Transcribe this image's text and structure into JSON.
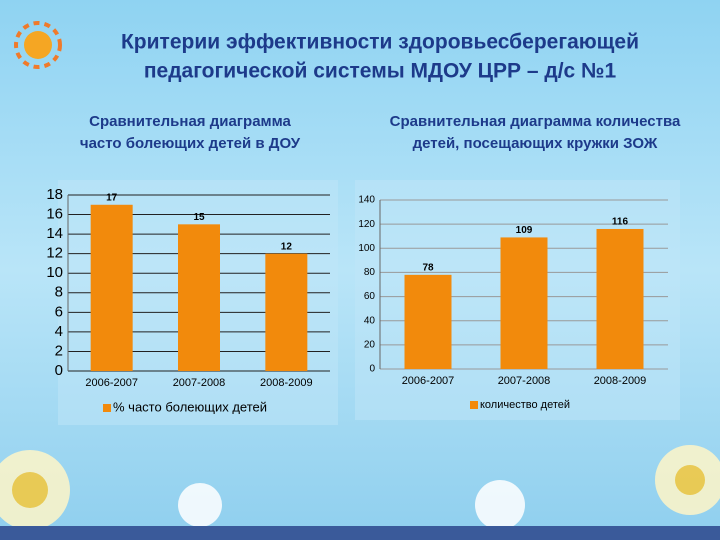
{
  "title": [
    "Критерии эффективности  здоровьесберегающей",
    "педагогической системы МДОУ ЦРР – д/с №1"
  ],
  "chart_data": [
    {
      "type": "bar",
      "title": [
        "Сравнительная диаграмма",
        "часто болеющих детей в ДОУ"
      ],
      "categories": [
        "2006-2007",
        "2007-2008",
        "2008-2009"
      ],
      "series": [
        {
          "name": "% часто болеющих детей",
          "color": "#f28a0c",
          "values": [
            17,
            15,
            12
          ]
        }
      ],
      "ylim": [
        0,
        18
      ],
      "yticks": [
        0,
        2,
        4,
        6,
        8,
        10,
        12,
        14,
        16,
        18
      ],
      "grid": true,
      "legend": "bottom"
    },
    {
      "type": "bar",
      "title": [
        "Сравнительная диаграмма количества",
        "детей, посещающих кружки ЗОЖ"
      ],
      "categories": [
        "2006-2007",
        "2007-2008",
        "2008-2009"
      ],
      "series": [
        {
          "name": "количество детей",
          "color": "#f28a0c",
          "values": [
            78,
            109,
            116
          ]
        }
      ],
      "ylim": [
        0,
        140
      ],
      "yticks": [
        0,
        20,
        40,
        60,
        80,
        100,
        120,
        140
      ],
      "grid": true,
      "legend": "bottom"
    }
  ]
}
